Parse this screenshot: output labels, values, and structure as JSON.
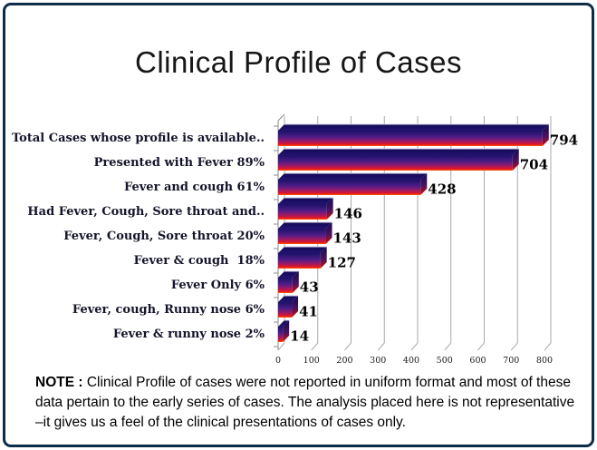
{
  "frame": {
    "border_color": "#0d2c47"
  },
  "title": "Clinical Profile of Cases",
  "chart_data": {
    "type": "bar",
    "orientation": "horizontal",
    "style": "3d",
    "title": "Clinical Profile of Cases",
    "categories": [
      "Total Cases whose profile is available..",
      "Presented with Fever 89%",
      "Fever and cough 61%",
      "Had Fever, Cough, Sore throat and..",
      "Fever, Cough, Sore throat 20%",
      "Fever & cough  18%",
      "Fever Only 6%",
      "Fever, cough, Runny nose 6%",
      "Fever & runny nose 2%"
    ],
    "values": [
      794,
      704,
      428,
      146,
      143,
      127,
      43,
      41,
      14
    ],
    "x_ticks": [
      "0",
      "100",
      "200",
      "300",
      "400",
      "500",
      "600",
      "700",
      "800"
    ],
    "xlim": [
      0,
      800
    ],
    "grid": true,
    "legend": false,
    "xlabel": "",
    "ylabel": "",
    "colors": {
      "bar_front_gradient": [
        "#1b1166",
        "#4b1d87",
        "#97196a",
        "#e61723",
        "#ff5f00"
      ],
      "bar_side_gradient": [
        "#120b4e",
        "#47135f",
        "#b01018",
        "#d23c00"
      ],
      "bar_top": [
        "#0f0852",
        "#251473"
      ],
      "top_edge_highlight": "#d6d2ee",
      "gridline": "#a9a9a9",
      "axis": "#8c8c8c",
      "value_label": "#000000",
      "category_label": "#14142b"
    }
  },
  "note": {
    "label": "NOTE :",
    "text": " Clinical Profile of cases were not reported in uniform format and most of these data pertain to the early series of cases. The analysis placed here is not representative –it gives us a feel of the clinical presentations of cases only."
  }
}
